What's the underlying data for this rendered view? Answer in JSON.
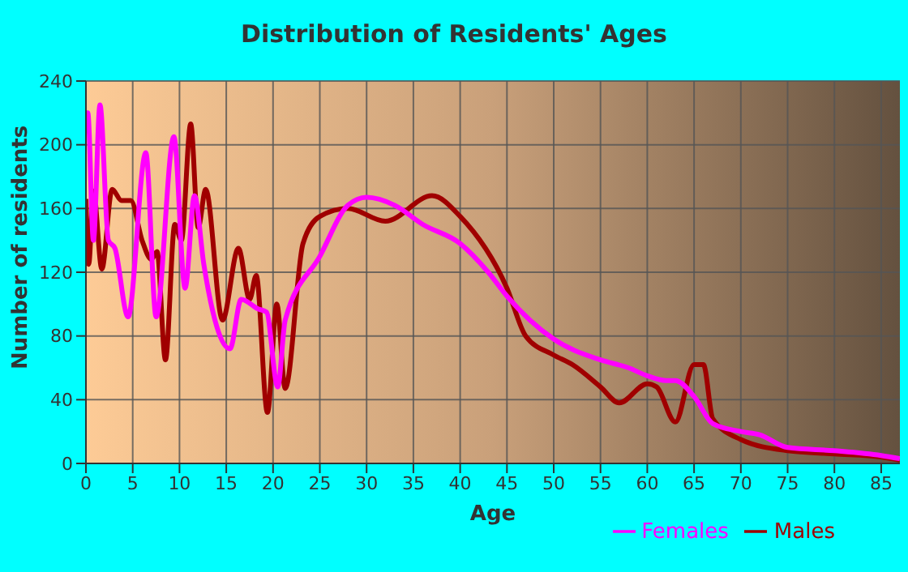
{
  "chart_data": {
    "type": "line",
    "title": "Distribution of Residents' Ages",
    "xlabel": "Age",
    "ylabel": "Number of residents",
    "xlim": [
      0,
      87
    ],
    "xticks": [
      0,
      5,
      10,
      15,
      20,
      25,
      30,
      35,
      40,
      45,
      50,
      55,
      60,
      65,
      70,
      75,
      80,
      85
    ],
    "ylim": [
      0,
      240
    ],
    "yticks": [
      0,
      40,
      80,
      120,
      160,
      200,
      240
    ],
    "grid": true,
    "legend": "bottom",
    "marker": "none",
    "line_style": "solid",
    "series": [
      {
        "name": "Males",
        "color": "#a00000",
        "x": [
          0,
          0.3,
          0.8,
          1.7,
          2.8,
          3.8,
          4.8,
          6,
          7,
          7.6,
          8.5,
          9.5,
          10.2,
          11.2,
          12,
          12.8,
          14.6,
          16.3,
          17.5,
          18.2,
          19.4,
          20.4,
          21.3,
          23.2,
          25,
          28,
          32,
          37,
          40,
          45,
          47,
          50,
          52,
          55,
          57,
          60,
          61,
          63,
          65,
          66,
          67,
          70,
          75,
          80,
          85,
          87
        ],
        "values": [
          166,
          125,
          171,
          122,
          172,
          165,
          165,
          140,
          128,
          133,
          65,
          150,
          140,
          213,
          148,
          172,
          90,
          135,
          103,
          118,
          32,
          100,
          47,
          138,
          155,
          160,
          152,
          168,
          155,
          110,
          80,
          68,
          62,
          48,
          38,
          50,
          48,
          26,
          62,
          62,
          28,
          15,
          8,
          6,
          4,
          2
        ]
      },
      {
        "name": "Females",
        "color": "#ff00ff",
        "x": [
          0,
          0.2,
          0.8,
          1.5,
          2.4,
          3.1,
          4.5,
          6.4,
          7.5,
          9.4,
          10.6,
          11.6,
          12.6,
          15.4,
          16.6,
          18.4,
          19.3,
          20.5,
          21.3,
          25,
          28,
          30,
          33,
          36,
          40,
          43,
          45,
          50,
          55,
          58,
          60,
          62,
          63,
          65,
          67,
          70,
          72,
          75,
          80,
          85,
          87
        ],
        "values": [
          220,
          220,
          140,
          225,
          140,
          135,
          92,
          195,
          92,
          205,
          110,
          168,
          125,
          72,
          103,
          97,
          95,
          48,
          90,
          130,
          162,
          167,
          162,
          150,
          138,
          120,
          105,
          78,
          65,
          60,
          55,
          52,
          52,
          42,
          25,
          20,
          18,
          10,
          8,
          5,
          3
        ]
      }
    ]
  }
}
